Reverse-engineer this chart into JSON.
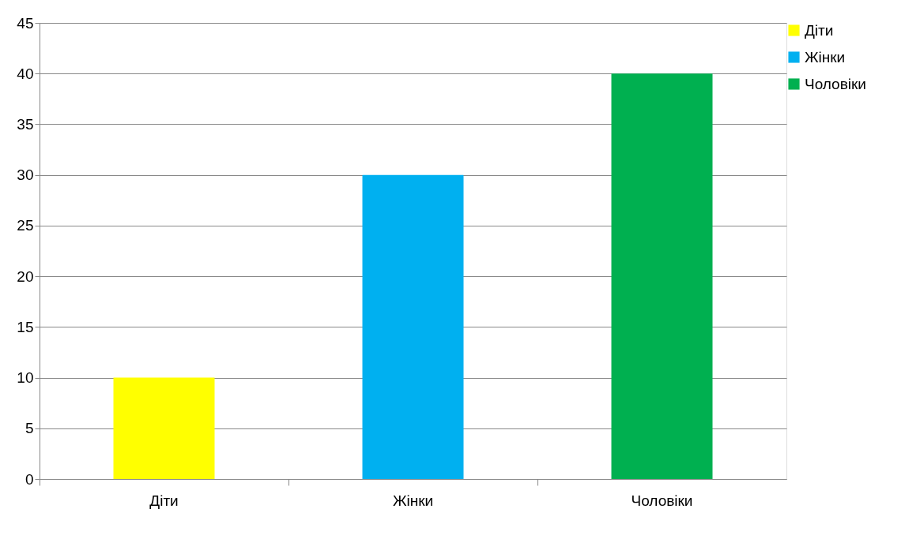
{
  "chart_data": {
    "type": "bar",
    "categories": [
      "Діти",
      "Жінки",
      "Чоловіки"
    ],
    "series": [
      {
        "name": "Діти",
        "color": "#ffff00",
        "values": [
          10,
          null,
          null
        ]
      },
      {
        "name": "Жінки",
        "color": "#00b0f0",
        "values": [
          null,
          30,
          null
        ]
      },
      {
        "name": "Чоловіки",
        "color": "#00b050",
        "values": [
          null,
          null,
          40
        ]
      }
    ],
    "ylim": [
      0,
      45
    ],
    "yticks": [
      0,
      5,
      10,
      15,
      20,
      25,
      30,
      35,
      40,
      45
    ],
    "grid": "y",
    "legend": "right"
  }
}
